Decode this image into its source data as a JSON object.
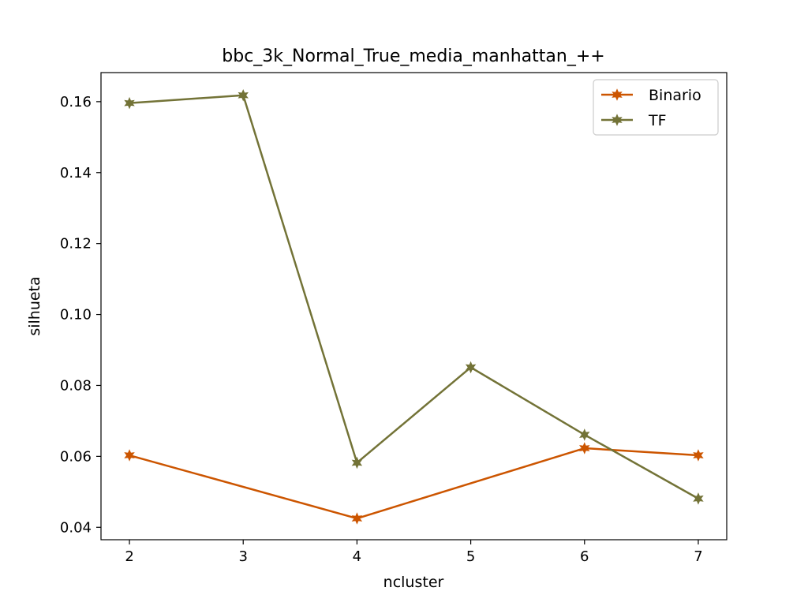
{
  "chart_data": {
    "type": "line",
    "title": "bbc_3k_Normal_True_media_manhattan_++",
    "xlabel": "ncluster",
    "ylabel": "silhueta",
    "x": [
      2,
      3,
      4,
      5,
      6,
      7
    ],
    "xlim": [
      1.75,
      7.25
    ],
    "ylim": [
      0.0365,
      0.1682
    ],
    "xticks": [
      2,
      3,
      4,
      5,
      6,
      7
    ],
    "yticks": [
      0.04,
      0.06,
      0.08,
      0.1,
      0.12,
      0.14,
      0.16
    ],
    "ytick_labels": [
      "0.04",
      "0.06",
      "0.08",
      "0.10",
      "0.12",
      "0.14",
      "0.16"
    ],
    "grid": false,
    "legend_position": "top-right",
    "series": [
      {
        "name": "Binario",
        "color": "#cc5500",
        "marker": "star",
        "values": [
          0.0603,
          null,
          0.0425,
          null,
          0.0623,
          0.0603
        ]
      },
      {
        "name": "TF",
        "color": "#737337",
        "marker": "star",
        "values": [
          0.1596,
          0.1618,
          0.0582,
          0.0851,
          0.0661,
          0.0481
        ]
      }
    ]
  }
}
